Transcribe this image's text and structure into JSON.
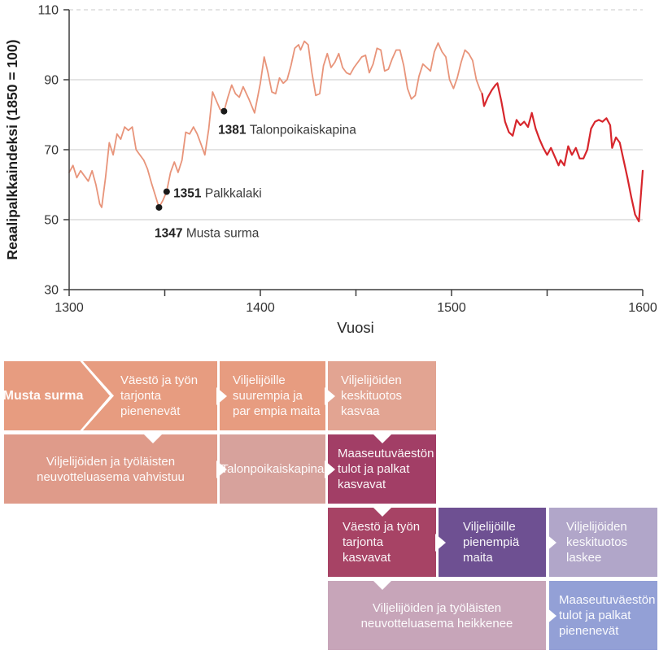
{
  "chart_data": {
    "type": "line",
    "title": "",
    "xlabel": "Vuosi",
    "ylabel": "Reaalipalkkaindeksi (1850 = 100)",
    "xlim": [
      1300,
      1600
    ],
    "ylim": [
      30,
      110
    ],
    "xticks": [
      1300,
      1350,
      1400,
      1450,
      1500,
      1550,
      1600
    ],
    "xtick_labels": [
      "1300",
      "",
      "1400",
      "",
      "1500",
      "",
      "1600"
    ],
    "yticks": [
      30,
      50,
      70,
      90,
      110
    ],
    "grid_solid_y": [
      50,
      70,
      90
    ],
    "grid_dashed_y": [
      110
    ],
    "legend": "none",
    "colors": {
      "axis": "#3d3d3d",
      "grid": "#c9c9c9",
      "tick_text": "#333333",
      "annotation_dot": "#1a1a1a",
      "annotation_text": "#3a3a3a"
    },
    "series": [
      {
        "name": "reaalipalkkaindeksi 1300-1516",
        "color": "#E8947A",
        "width": 1.8,
        "points": [
          [
            1300,
            63.5
          ],
          [
            1302,
            65.5
          ],
          [
            1304,
            62
          ],
          [
            1306,
            64
          ],
          [
            1308,
            62.5
          ],
          [
            1310,
            61
          ],
          [
            1312,
            64
          ],
          [
            1314,
            60
          ],
          [
            1316,
            54.5
          ],
          [
            1317,
            53.5
          ],
          [
            1319,
            62
          ],
          [
            1321,
            72
          ],
          [
            1323,
            68.5
          ],
          [
            1325,
            74.5
          ],
          [
            1327,
            73
          ],
          [
            1329,
            76.5
          ],
          [
            1331,
            75.5
          ],
          [
            1333,
            76.5
          ],
          [
            1335,
            70
          ],
          [
            1337,
            68.5
          ],
          [
            1339,
            67
          ],
          [
            1341,
            64.5
          ],
          [
            1343,
            60.5
          ],
          [
            1345,
            57
          ],
          [
            1347,
            53.5
          ],
          [
            1349,
            55.5
          ],
          [
            1351,
            58
          ],
          [
            1353,
            63.5
          ],
          [
            1355,
            66.5
          ],
          [
            1357,
            63.5
          ],
          [
            1359,
            67
          ],
          [
            1361,
            75
          ],
          [
            1363,
            74.5
          ],
          [
            1365,
            76.5
          ],
          [
            1367,
            74.5
          ],
          [
            1369,
            71.5
          ],
          [
            1371,
            68.5
          ],
          [
            1373,
            76
          ],
          [
            1375,
            86.5
          ],
          [
            1377,
            84
          ],
          [
            1379,
            81.5
          ],
          [
            1381,
            81
          ],
          [
            1383,
            85
          ],
          [
            1385,
            88.5
          ],
          [
            1387,
            86
          ],
          [
            1389,
            85
          ],
          [
            1391,
            88
          ],
          [
            1394,
            84.5
          ],
          [
            1397,
            80.5
          ],
          [
            1400,
            89
          ],
          [
            1402,
            96.5
          ],
          [
            1404,
            92
          ],
          [
            1406,
            86.5
          ],
          [
            1408,
            86
          ],
          [
            1410,
            90.5
          ],
          [
            1412,
            89
          ],
          [
            1414,
            90
          ],
          [
            1416,
            94
          ],
          [
            1418,
            99
          ],
          [
            1420,
            100
          ],
          [
            1421,
            98.5
          ],
          [
            1423,
            101
          ],
          [
            1425,
            100
          ],
          [
            1427,
            92
          ],
          [
            1429,
            85.5
          ],
          [
            1431,
            86
          ],
          [
            1433,
            94
          ],
          [
            1435,
            97.5
          ],
          [
            1437,
            93.5
          ],
          [
            1439,
            95
          ],
          [
            1441,
            97.5
          ],
          [
            1443,
            93.5
          ],
          [
            1445,
            92
          ],
          [
            1447,
            91.5
          ],
          [
            1449,
            93.5
          ],
          [
            1451,
            95
          ],
          [
            1453,
            96.5
          ],
          [
            1455,
            97
          ],
          [
            1457,
            92
          ],
          [
            1459,
            94.5
          ],
          [
            1461,
            99
          ],
          [
            1463,
            98.5
          ],
          [
            1465,
            92.5
          ],
          [
            1467,
            93
          ],
          [
            1469,
            96
          ],
          [
            1471,
            98.5
          ],
          [
            1473,
            98.5
          ],
          [
            1475,
            94
          ],
          [
            1477,
            87.5
          ],
          [
            1479,
            84.5
          ],
          [
            1481,
            85.5
          ],
          [
            1483,
            91
          ],
          [
            1485,
            94.5
          ],
          [
            1487,
            93.5
          ],
          [
            1489,
            92.5
          ],
          [
            1491,
            98
          ],
          [
            1493,
            100.5
          ],
          [
            1495,
            98
          ],
          [
            1497,
            96.5
          ],
          [
            1499,
            90
          ],
          [
            1501,
            87.5
          ],
          [
            1503,
            90.5
          ],
          [
            1505,
            95
          ],
          [
            1507,
            98.5
          ],
          [
            1509,
            97.5
          ],
          [
            1511,
            95.5
          ],
          [
            1513,
            90
          ],
          [
            1515,
            87
          ],
          [
            1516,
            86
          ]
        ]
      },
      {
        "name": "reaalipalkkaindeksi 1516-1600",
        "color": "#D7262C",
        "width": 2.2,
        "points": [
          [
            1516,
            86
          ],
          [
            1517,
            82.5
          ],
          [
            1519,
            85
          ],
          [
            1521,
            87
          ],
          [
            1523,
            88.5
          ],
          [
            1524,
            89
          ],
          [
            1526,
            84
          ],
          [
            1528,
            78
          ],
          [
            1530,
            75
          ],
          [
            1532,
            74
          ],
          [
            1534,
            78.5
          ],
          [
            1536,
            77
          ],
          [
            1538,
            78
          ],
          [
            1540,
            76.5
          ],
          [
            1542,
            80.5
          ],
          [
            1544,
            76
          ],
          [
            1546,
            73
          ],
          [
            1548,
            70.5
          ],
          [
            1550,
            68.5
          ],
          [
            1552,
            70.5
          ],
          [
            1554,
            68
          ],
          [
            1556,
            65.5
          ],
          [
            1557,
            67
          ],
          [
            1559,
            65.5
          ],
          [
            1561,
            71
          ],
          [
            1563,
            68.5
          ],
          [
            1565,
            70.5
          ],
          [
            1567,
            67.5
          ],
          [
            1569,
            67.5
          ],
          [
            1571,
            70
          ],
          [
            1573,
            76
          ],
          [
            1575,
            78
          ],
          [
            1577,
            78.5
          ],
          [
            1579,
            78
          ],
          [
            1581,
            79
          ],
          [
            1583,
            77
          ],
          [
            1584,
            70.5
          ],
          [
            1586,
            73.5
          ],
          [
            1588,
            72
          ],
          [
            1590,
            67
          ],
          [
            1592,
            62
          ],
          [
            1594,
            56.5
          ],
          [
            1596,
            51.5
          ],
          [
            1598,
            49.5
          ],
          [
            1600,
            64
          ]
        ]
      }
    ],
    "annotations": [
      {
        "year": "1347",
        "label": "Musta surma",
        "point": [
          1347,
          53.5
        ],
        "text_at": [
          1344.7,
          46.2
        ]
      },
      {
        "year": "1351",
        "label": "Palkkalaki",
        "point": [
          1351,
          58
        ],
        "text_at": [
          1354.5,
          57.6
        ]
      },
      {
        "year": "1381",
        "label": "Talonpoikaiskapina",
        "point": [
          1381,
          81
        ],
        "text_at": [
          1377.9,
          75.7
        ]
      }
    ]
  },
  "diagram": {
    "text_color": "#ffffff",
    "boxes": [
      {
        "name": "musta-surma",
        "lines": [
          "Musta surma"
        ],
        "color": "#E79C80",
        "row": 1,
        "col": 1,
        "shape": "chevron",
        "bold": true,
        "align": "center"
      },
      {
        "name": "vaesto-tarjonta-pienenevat",
        "lines": [
          "Väestö ja työn",
          "tarjonta",
          "pienenevät"
        ],
        "color": "#E79C80",
        "row": 1,
        "col": 2,
        "shape": "notch",
        "align": "left",
        "pad": 46
      },
      {
        "name": "viljelijoille-suurempia",
        "lines": [
          "Viljelijöille",
          "suurempia ja",
          "par empia maita"
        ],
        "color": "#E79C80",
        "row": 1,
        "col": 3,
        "arrow": "right",
        "align": "left",
        "pad": 16
      },
      {
        "name": "keskituotos-kasvaa",
        "lines": [
          "Viljelijöiden",
          "keskituotos",
          "kasvaa"
        ],
        "color": "#E2A492",
        "row": 1,
        "col": 4,
        "arrow": "right",
        "align": "left",
        "pad": 16
      },
      {
        "name": "neuvotteluasema-vahvistuu",
        "lines": [
          "Viljelijöiden ja työläisten",
          "neuvotteluasema vahvistuu"
        ],
        "color": "#DF9B8A",
        "row": 2,
        "col": 1,
        "colspan": 2,
        "arrow_down_at": 188,
        "align": "center"
      },
      {
        "name": "talonpoikaiskapina-box",
        "lines": [
          "Talonpoikaiskapina"
        ],
        "color": "#D7A29C",
        "row": 2,
        "col": 3,
        "arrow": "right",
        "align": "center"
      },
      {
        "name": "maaseutuvaeston-kasvavat",
        "lines": [
          "Maaseutuväestön",
          "tulot ja palkat",
          "kasvavat"
        ],
        "color": "#A23E66",
        "row": 2,
        "col": 4,
        "arrow": "right",
        "arrow_down_at": 470,
        "align": "left",
        "pad": 12
      },
      {
        "name": "vaesto-tarjonta-kasvavat",
        "lines": [
          "Väestö ja työn",
          "tarjonta",
          "kasvavat"
        ],
        "color": "#A74365",
        "row": 3,
        "col": 4,
        "arrow_down_at": 470,
        "align": "left",
        "pad": 18
      },
      {
        "name": "viljelijoille-pienempia",
        "lines": [
          "Viljelijöille",
          "pienempiä",
          "maita"
        ],
        "color": "#6E5092",
        "row": 3,
        "col": 5,
        "arrow": "right",
        "align": "left",
        "pad": 30
      },
      {
        "name": "keskituotos-laskee",
        "lines": [
          "Viljelijöiden",
          "keskituotos",
          "laskee"
        ],
        "color": "#B1A6C9",
        "row": 3,
        "col": 6,
        "arrow": "right",
        "align": "left",
        "pad": 21
      },
      {
        "name": "neuvotteluasema-heikkenee",
        "lines": [
          "Viljelijöiden ja työläisten",
          "neuvotteluasema heikkenee"
        ],
        "color": "#C7A5B9",
        "row": 4,
        "col": 4,
        "colspan": 2,
        "arrow_down_at": 470,
        "align": "center"
      },
      {
        "name": "maaseutuvaeston-pienenevat",
        "lines": [
          "Maaseutuväestön",
          "tulot ja palkat",
          "pienenevät"
        ],
        "color": "#93A0D6",
        "row": 4,
        "col": 6,
        "arrow": "right",
        "align": "left",
        "pad": 12
      }
    ]
  }
}
